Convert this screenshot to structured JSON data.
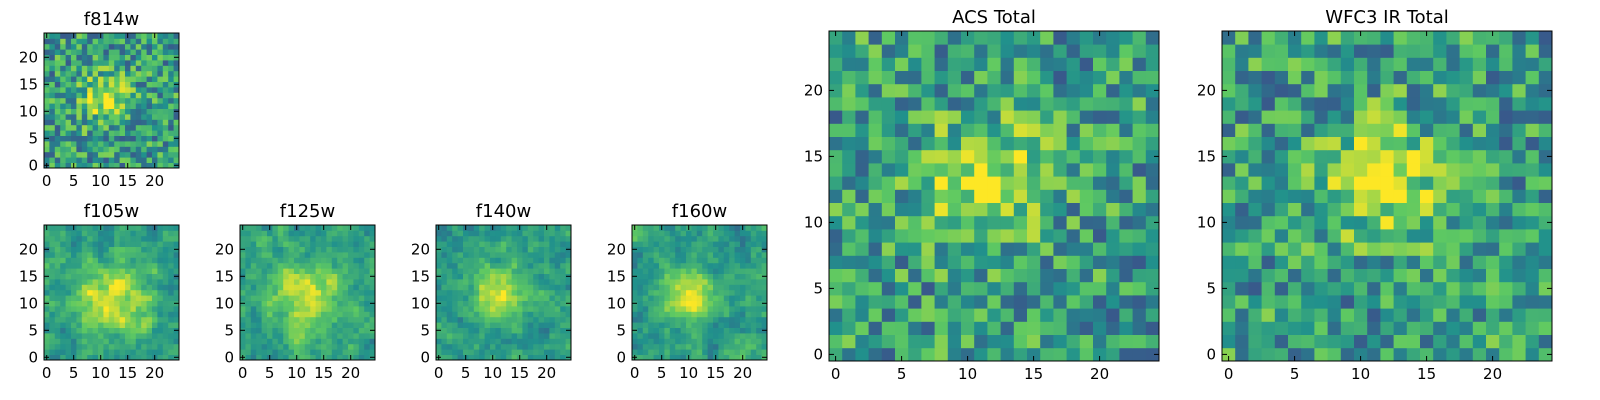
{
  "colormap": [
    "#440154",
    "#3b528b",
    "#21918c",
    "#5ec962",
    "#fde725"
  ],
  "chart_data": [
    {
      "type": "heatmap",
      "title": "f814w",
      "xticks": [
        "0",
        "5",
        "10",
        "15",
        "20"
      ],
      "yticks": [
        "0",
        "5",
        "10",
        "15",
        "20"
      ],
      "xlim": [
        0,
        24
      ],
      "ylim": [
        0,
        24
      ],
      "peak": [
        11,
        12.5
      ],
      "sigma": 3.0,
      "smooth": false,
      "seed": 3
    },
    {
      "type": "heatmap",
      "title": "f105w",
      "xticks": [
        "0",
        "5",
        "10",
        "15",
        "20"
      ],
      "yticks": [
        "0",
        "5",
        "10",
        "15",
        "20"
      ],
      "xlim": [
        0,
        24
      ],
      "ylim": [
        0,
        24
      ],
      "peak": [
        12,
        11
      ],
      "sigma": 5.0,
      "smooth": true,
      "seed": 7
    },
    {
      "type": "heatmap",
      "title": "f125w",
      "xticks": [
        "0",
        "5",
        "10",
        "15",
        "20"
      ],
      "yticks": [
        "0",
        "5",
        "10",
        "15",
        "20"
      ],
      "xlim": [
        0,
        24
      ],
      "ylim": [
        0,
        24
      ],
      "peak": [
        11,
        11
      ],
      "sigma": 4.5,
      "smooth": true,
      "seed": 11
    },
    {
      "type": "heatmap",
      "title": "f140w",
      "xticks": [
        "0",
        "5",
        "10",
        "15",
        "20"
      ],
      "yticks": [
        "0",
        "5",
        "10",
        "15",
        "20"
      ],
      "xlim": [
        0,
        24
      ],
      "ylim": [
        0,
        24
      ],
      "peak": [
        11,
        12
      ],
      "sigma": 3.5,
      "smooth": true,
      "seed": 19
    },
    {
      "type": "heatmap",
      "title": "f160w",
      "xticks": [
        "0",
        "5",
        "10",
        "15",
        "20"
      ],
      "yticks": [
        "0",
        "5",
        "10",
        "15",
        "20"
      ],
      "xlim": [
        0,
        24
      ],
      "ylim": [
        0,
        24
      ],
      "peak": [
        10,
        12
      ],
      "sigma": 3.5,
      "smooth": true,
      "seed": 23
    },
    {
      "type": "heatmap",
      "title": "ACS Total",
      "xticks": [
        "0",
        "5",
        "10",
        "15",
        "20"
      ],
      "yticks": [
        "0",
        "5",
        "10",
        "15",
        "20"
      ],
      "xlim": [
        0,
        24
      ],
      "ylim": [
        0,
        24
      ],
      "peak": [
        11.5,
        13
      ],
      "sigma": 3.0,
      "smooth": false,
      "seed": 31
    },
    {
      "type": "heatmap",
      "title": "WFC3 IR Total",
      "xticks": [
        "0",
        "5",
        "10",
        "15",
        "20"
      ],
      "yticks": [
        "0",
        "5",
        "10",
        "15",
        "20"
      ],
      "xlim": [
        0,
        24
      ],
      "ylim": [
        0,
        24
      ],
      "peak": [
        12,
        13
      ],
      "sigma": 3.0,
      "smooth": false,
      "seed": 41
    }
  ]
}
